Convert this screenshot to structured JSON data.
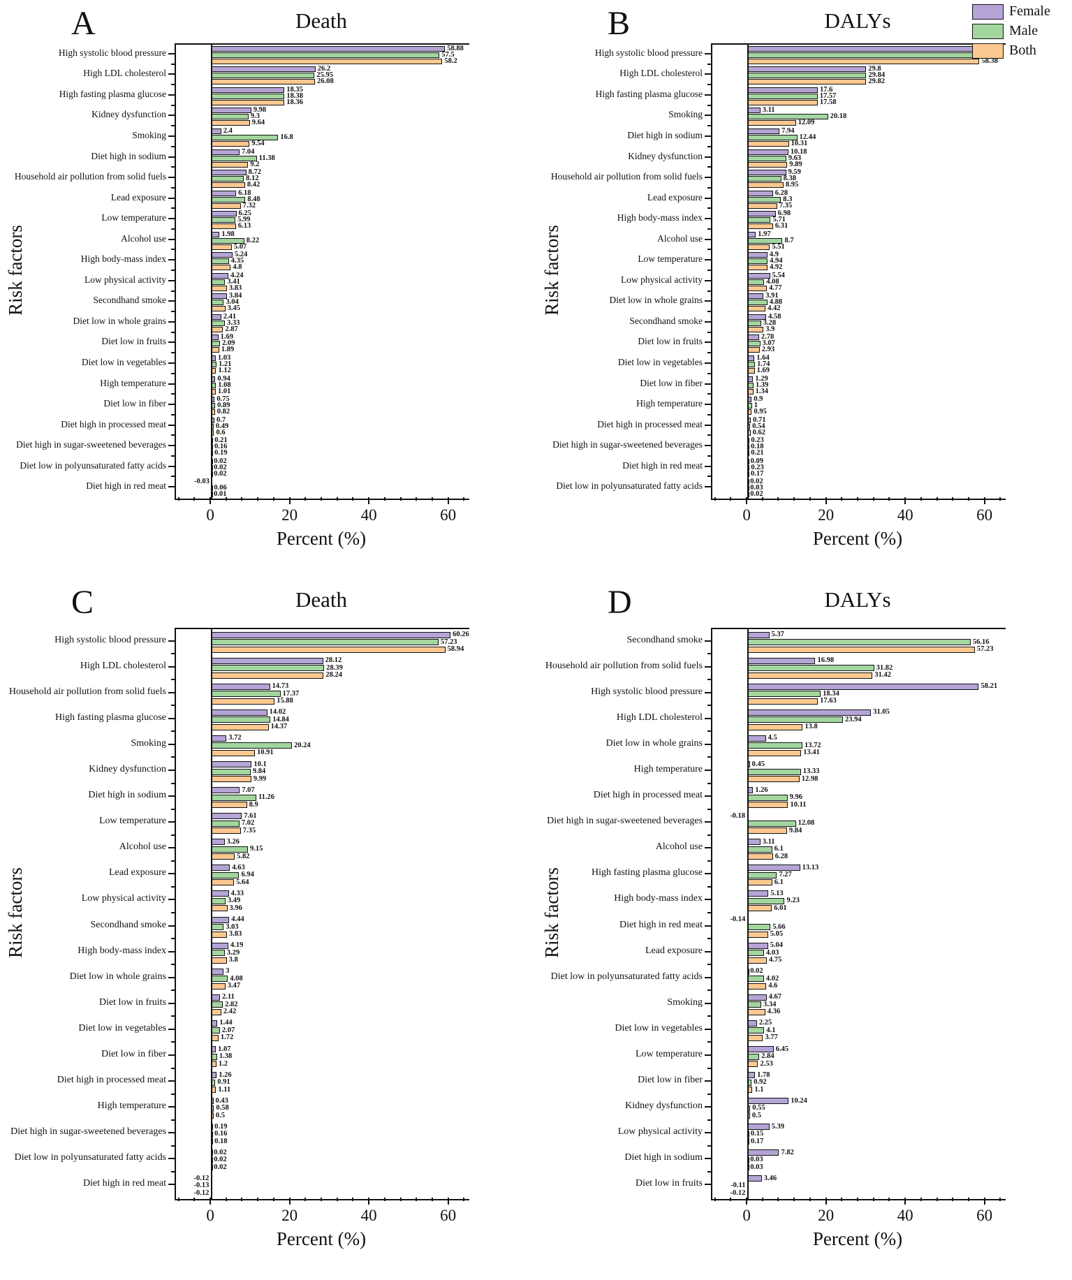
{
  "figure": {
    "legend": {
      "entries": [
        {
          "label": "Female",
          "color": "#b5a4d6"
        },
        {
          "label": "Male",
          "color": "#a3d69f"
        },
        {
          "label": "Both",
          "color": "#fbc890"
        }
      ]
    },
    "axes": {
      "xlabel": "Percent (%)",
      "ylabel": "Risk factors",
      "x_major_ticks": [
        0,
        20,
        40,
        60
      ],
      "x_minor_step": 4,
      "x_range": [
        -9,
        65
      ]
    }
  },
  "chart_data": [
    {
      "id": "A",
      "type": "bar",
      "orientation": "horizontal",
      "title": "Death",
      "series_names": [
        "Female",
        "Male",
        "Both"
      ],
      "rows": [
        {
          "label": "High systolic blood pressure",
          "values": [
            "58.88",
            "57.5",
            "58.2"
          ]
        },
        {
          "label": "High LDL cholesterol",
          "values": [
            "26.2",
            "25.95",
            "26.08"
          ]
        },
        {
          "label": "High fasting plasma glucose",
          "values": [
            "18.35",
            "18.38",
            "18.36"
          ]
        },
        {
          "label": "Kidney dysfunction",
          "values": [
            "9.98",
            "9.3",
            "9.64"
          ]
        },
        {
          "label": "Smoking",
          "values": [
            "2.4",
            "16.8",
            "9.54"
          ]
        },
        {
          "label": "Diet high in sodium",
          "values": [
            "7.04",
            "11.38",
            "9.2"
          ]
        },
        {
          "label": "Household air pollution from solid fuels",
          "values": [
            "8.72",
            "8.12",
            "8.42"
          ]
        },
        {
          "label": "Lead exposure",
          "values": [
            "6.18",
            "8.48",
            "7.32"
          ]
        },
        {
          "label": "Low temperature",
          "values": [
            "6.25",
            "5.99",
            "6.13"
          ]
        },
        {
          "label": "Alcohol use",
          "values": [
            "1.98",
            "8.22",
            "5.07"
          ]
        },
        {
          "label": "High body-mass index",
          "values": [
            "5.24",
            "4.35",
            "4.8"
          ]
        },
        {
          "label": "Low physical activity",
          "values": [
            "4.24",
            "3.41",
            "3.83"
          ]
        },
        {
          "label": "Secondhand smoke",
          "values": [
            "3.84",
            "3.04",
            "3.45"
          ]
        },
        {
          "label": "Diet low in whole grains",
          "values": [
            "2.41",
            "3.33",
            "2.87"
          ]
        },
        {
          "label": "Diet low in fruits",
          "values": [
            "1.69",
            "2.09",
            "1.89"
          ]
        },
        {
          "label": "Diet low in vegetables",
          "values": [
            "1.03",
            "1.21",
            "1.12"
          ]
        },
        {
          "label": "High temperature",
          "values": [
            "0.94",
            "1.08",
            "1.01"
          ]
        },
        {
          "label": "Diet low in fiber",
          "values": [
            "0.75",
            "0.89",
            "0.82"
          ]
        },
        {
          "label": "Diet high in processed meat",
          "values": [
            "0.7",
            "0.49",
            "0.6"
          ]
        },
        {
          "label": "Diet high in sugar-sweetened beverages",
          "values": [
            "0.21",
            "0.16",
            "0.19"
          ]
        },
        {
          "label": "Diet low in polyunsaturated fatty acids",
          "values": [
            "0.02",
            "0.02",
            "0.02"
          ]
        },
        {
          "label": "Diet high in red meat",
          "values": [
            "-0.03",
            "0.06",
            "0.01"
          ]
        }
      ]
    },
    {
      "id": "B",
      "type": "bar",
      "orientation": "horizontal",
      "title": "DALYs",
      "series_names": [
        "Female",
        "Male",
        "Both"
      ],
      "rows": [
        {
          "label": "High systolic blood pressure",
          "values": [
            "58.71",
            "58.07",
            "58.38"
          ]
        },
        {
          "label": "High LDL cholesterol",
          "values": [
            "29.8",
            "29.84",
            "29.82"
          ]
        },
        {
          "label": "High fasting plasma glucose",
          "values": [
            "17.6",
            "17.57",
            "17.58"
          ]
        },
        {
          "label": "Smoking",
          "values": [
            "3.11",
            "20.18",
            "12.09"
          ]
        },
        {
          "label": "Diet high in sodium",
          "values": [
            "7.94",
            "12.44",
            "10.31"
          ]
        },
        {
          "label": "Kidney dysfunction",
          "values": [
            "10.18",
            "9.63",
            "9.89"
          ]
        },
        {
          "label": "Household air pollution from solid fuels",
          "values": [
            "9.59",
            "8.38",
            "8.95"
          ]
        },
        {
          "label": "Lead exposure",
          "values": [
            "6.28",
            "8.3",
            "7.35"
          ]
        },
        {
          "label": "High body-mass index",
          "values": [
            "6.98",
            "5.71",
            "6.31"
          ]
        },
        {
          "label": "Alcohol use",
          "values": [
            "1.97",
            "8.7",
            "5.51"
          ]
        },
        {
          "label": "Low temperature",
          "values": [
            "4.9",
            "4.94",
            "4.92"
          ]
        },
        {
          "label": "Low physical activity",
          "values": [
            "5.54",
            "4.08",
            "4.77"
          ]
        },
        {
          "label": "Diet low in whole grains",
          "values": [
            "3.91",
            "4.88",
            "4.42"
          ]
        },
        {
          "label": "Secondhand smoke",
          "values": [
            "4.58",
            "3.28",
            "3.9"
          ]
        },
        {
          "label": "Diet low in fruits",
          "values": [
            "2.78",
            "3.07",
            "2.93"
          ]
        },
        {
          "label": "Diet low in vegetables",
          "values": [
            "1.64",
            "1.74",
            "1.69"
          ]
        },
        {
          "label": "Diet low in fiber",
          "values": [
            "1.29",
            "1.39",
            "1.34"
          ]
        },
        {
          "label": "High temperature",
          "values": [
            "0.9",
            "1",
            "0.95"
          ]
        },
        {
          "label": "Diet high in processed meat",
          "values": [
            "0.71",
            "0.54",
            "0.62"
          ]
        },
        {
          "label": "Diet high in sugar-sweetened beverages",
          "values": [
            "0.23",
            "0.18",
            "0.21"
          ]
        },
        {
          "label": "Diet high in red meat",
          "values": [
            "0.09",
            "0.23",
            "0.17"
          ]
        },
        {
          "label": "Diet low in polyunsaturated fatty acids",
          "values": [
            "0.02",
            "0.03",
            "0.02"
          ]
        }
      ]
    },
    {
      "id": "C",
      "type": "bar",
      "orientation": "horizontal",
      "title": "Death",
      "series_names": [
        "Female",
        "Male",
        "Both"
      ],
      "rows": [
        {
          "label": "High systolic blood pressure",
          "values": [
            "60.26",
            "57.23",
            "58.94"
          ]
        },
        {
          "label": "High LDL cholesterol",
          "values": [
            "28.12",
            "28.39",
            "28.24"
          ]
        },
        {
          "label": "Household air pollution from solid fuels",
          "values": [
            "14.73",
            "17.37",
            "15.88"
          ]
        },
        {
          "label": "High fasting plasma glucose",
          "values": [
            "14.02",
            "14.84",
            "14.37"
          ]
        },
        {
          "label": "Smoking",
          "values": [
            "3.72",
            "20.24",
            "10.91"
          ]
        },
        {
          "label": "Kidney dysfunction",
          "values": [
            "10.1",
            "9.84",
            "9.99"
          ]
        },
        {
          "label": "Diet high in sodium",
          "values": [
            "7.07",
            "11.26",
            "8.9"
          ]
        },
        {
          "label": "Low temperature",
          "values": [
            "7.61",
            "7.02",
            "7.35"
          ]
        },
        {
          "label": "Alcohol use",
          "values": [
            "3.26",
            "9.15",
            "5.82"
          ]
        },
        {
          "label": "Lead exposure",
          "values": [
            "4.63",
            "6.94",
            "5.64"
          ]
        },
        {
          "label": "Low physical activity",
          "values": [
            "4.33",
            "3.49",
            "3.96"
          ]
        },
        {
          "label": "Secondhand smoke",
          "values": [
            "4.44",
            "3.03",
            "3.83"
          ]
        },
        {
          "label": "High body-mass index",
          "values": [
            "4.19",
            "3.29",
            "3.8"
          ]
        },
        {
          "label": "Diet low in whole grains",
          "values": [
            "3",
            "4.08",
            "3.47"
          ]
        },
        {
          "label": "Diet low in fruits",
          "values": [
            "2.11",
            "2.82",
            "2.42"
          ]
        },
        {
          "label": "Diet low in vegetables",
          "values": [
            "1.44",
            "2.07",
            "1.72"
          ]
        },
        {
          "label": "Diet low in fiber",
          "values": [
            "1.07",
            "1.38",
            "1.2"
          ]
        },
        {
          "label": "Diet high in processed meat",
          "values": [
            "1.26",
            "0.91",
            "1.11"
          ]
        },
        {
          "label": "High temperature",
          "values": [
            "0.43",
            "0.58",
            "0.5"
          ]
        },
        {
          "label": "Diet high in sugar-sweetened beverages",
          "values": [
            "0.19",
            "0.16",
            "0.18"
          ]
        },
        {
          "label": "Diet low in polyunsaturated fatty acids",
          "values": [
            "0.02",
            "0.02",
            "0.02"
          ]
        },
        {
          "label": "Diet high in red meat",
          "values": [
            "-0.12",
            "-0.13",
            "-0.12"
          ]
        }
      ]
    },
    {
      "id": "D",
      "type": "bar",
      "orientation": "horizontal",
      "title": "DALYs",
      "series_names": [
        "Female",
        "Male",
        "Both"
      ],
      "rows": [
        {
          "label": "Secondhand smoke",
          "values": [
            "5.37",
            "56.16",
            "57.23"
          ]
        },
        {
          "label": "Household air pollution from solid fuels",
          "values": [
            "16.98",
            "31.82",
            "31.42"
          ]
        },
        {
          "label": "High systolic blood pressure",
          "values": [
            "58.21",
            "18.34",
            "17.63"
          ]
        },
        {
          "label": "High LDL cholesterol",
          "values": [
            "31.05",
            "23.94",
            "13.8"
          ]
        },
        {
          "label": "Diet low in whole grains",
          "values": [
            "4.5",
            "13.72",
            "13.41"
          ]
        },
        {
          "label": "High temperature",
          "values": [
            "0.45",
            "13.33",
            "12.98"
          ]
        },
        {
          "label": "Diet high in processed meat",
          "values": [
            "1.26",
            "9.96",
            "10.11"
          ]
        },
        {
          "label": "Diet high in sugar-sweetened beverages",
          "values": [
            "-0.18",
            "12.08",
            "9.84"
          ]
        },
        {
          "label": "Alcohol use",
          "values": [
            "3.11",
            "6.1",
            "6.28"
          ]
        },
        {
          "label": "High fasting plasma glucose",
          "values": [
            "13.13",
            "7.27",
            "6.1"
          ]
        },
        {
          "label": "High body-mass index",
          "values": [
            "5.13",
            "9.23",
            "6.01"
          ]
        },
        {
          "label": "Diet high in red meat",
          "values": [
            "-0.14",
            "5.66",
            "5.05"
          ]
        },
        {
          "label": "Lead exposure",
          "values": [
            "5.04",
            "4.03",
            "4.75"
          ]
        },
        {
          "label": "Diet low in polyunsaturated fatty acids",
          "values": [
            "0.02",
            "4.02",
            "4.6"
          ]
        },
        {
          "label": "Smoking",
          "values": [
            "4.67",
            "3.34",
            "4.36"
          ]
        },
        {
          "label": "Diet low in vegetables",
          "values": [
            "2.25",
            "4.1",
            "3.77"
          ]
        },
        {
          "label": "Low temperature",
          "values": [
            "6.45",
            "2.84",
            "2.53"
          ]
        },
        {
          "label": "Diet low in fiber",
          "values": [
            "1.78",
            "0.92",
            "1.1"
          ]
        },
        {
          "label": "Kidney dysfunction",
          "values": [
            "10.24",
            "0.55",
            "0.5"
          ]
        },
        {
          "label": "Low physical activity",
          "values": [
            "5.39",
            "0.15",
            "0.17"
          ]
        },
        {
          "label": "Diet high in sodium",
          "values": [
            "7.82",
            "0.03",
            "0.03"
          ]
        },
        {
          "label": "Diet low in fruits",
          "values": [
            "3.46",
            "-0.11",
            "-0.12"
          ]
        }
      ]
    }
  ]
}
